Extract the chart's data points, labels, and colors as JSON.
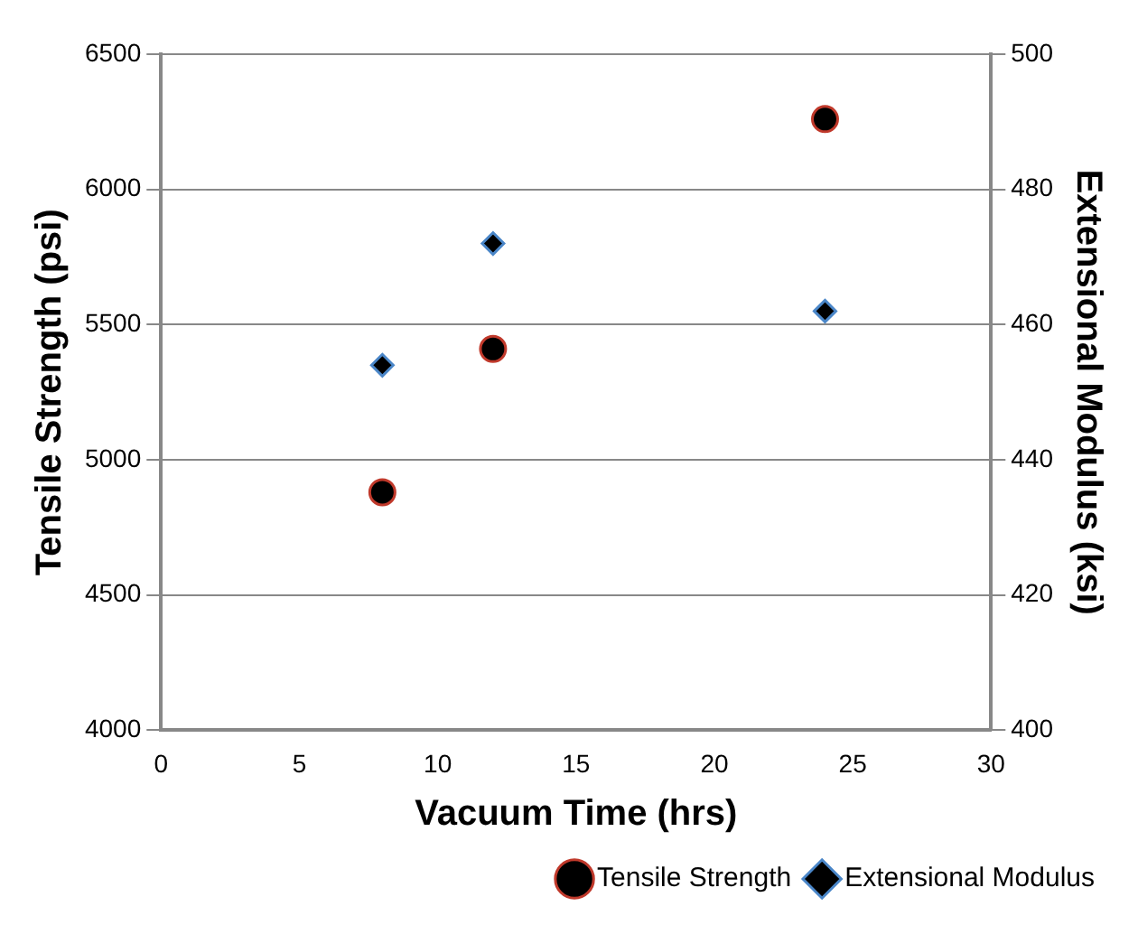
{
  "chart_data": {
    "type": "scatter",
    "xlabel": "Vacuum Time (hrs)",
    "ylabel": "Tensile Strength (psi)",
    "y2label": "Extensional Modulus (ksi)",
    "xlim": [
      0,
      30
    ],
    "xticks": [
      0,
      5,
      10,
      15,
      20,
      25,
      30
    ],
    "ylim": [
      4000,
      6500
    ],
    "yticks": [
      4000,
      4500,
      5000,
      5500,
      6000,
      6500
    ],
    "y2lim": [
      400,
      500
    ],
    "y2ticks": [
      400,
      420,
      440,
      460,
      480,
      500
    ],
    "grid": "y",
    "legend": "bottom right",
    "series": [
      {
        "name": "Tensile Strength",
        "color": "#000000",
        "marker": "circle",
        "x": [
          8,
          12,
          24
        ],
        "values": [
          4880,
          5410,
          6260
        ]
      },
      {
        "name": "Extensional Modulus",
        "color": "#000000",
        "marker": "diamond",
        "axis": "y2",
        "x": [
          8,
          12,
          24
        ],
        "values": [
          454,
          472,
          462
        ]
      }
    ]
  }
}
